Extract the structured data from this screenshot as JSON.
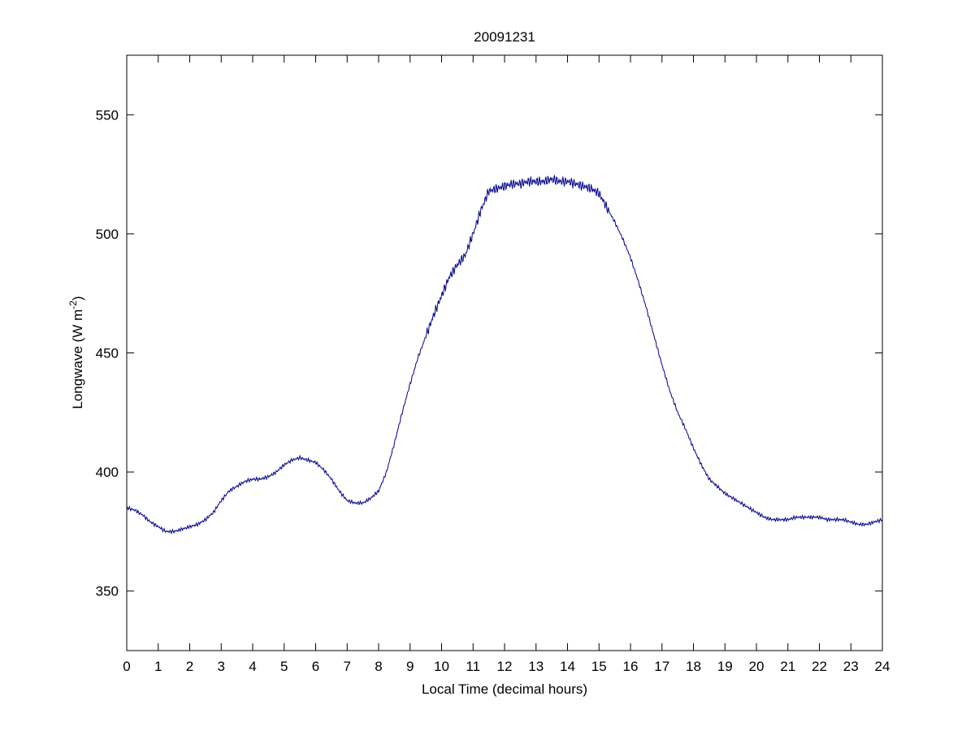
{
  "chart_data": {
    "type": "line",
    "title": "20091231",
    "xlabel": "Local Time (decimal hours)",
    "ylabel": "Longwave (W m-2)",
    "ylabel_parts": {
      "main": "Longwave (W m",
      "sup": "-2",
      "close": ")"
    },
    "xlim": [
      0,
      24
    ],
    "ylim": [
      325,
      575
    ],
    "x_ticks": [
      0,
      1,
      2,
      3,
      4,
      5,
      6,
      7,
      8,
      9,
      10,
      11,
      12,
      13,
      14,
      15,
      16,
      17,
      18,
      19,
      20,
      21,
      22,
      23,
      24
    ],
    "y_ticks": [
      350,
      400,
      450,
      500,
      550
    ],
    "grid": false,
    "line_color": "#00008b",
    "series": [
      {
        "x": [
          0,
          0.25,
          0.5,
          0.75,
          1,
          1.25,
          1.5,
          1.75,
          2,
          2.25,
          2.5,
          2.75,
          3,
          3.25,
          3.5,
          3.75,
          4,
          4.25,
          4.5,
          4.75,
          5,
          5.25,
          5.5,
          5.75,
          6,
          6.25,
          6.5,
          6.75,
          7,
          7.25,
          7.5,
          7.75,
          8,
          8.25,
          8.5,
          8.75,
          9,
          9.25,
          9.5,
          9.75,
          10,
          10.25,
          10.5,
          10.75,
          11,
          11.25,
          11.5,
          11.75,
          12,
          12.25,
          12.5,
          12.75,
          13,
          13.25,
          13.5,
          13.75,
          14,
          14.25,
          14.5,
          14.75,
          15,
          15.25,
          15.5,
          15.75,
          16,
          16.25,
          16.5,
          16.75,
          17,
          17.25,
          17.5,
          17.75,
          18,
          18.25,
          18.5,
          18.75,
          19,
          19.25,
          19.5,
          19.75,
          20,
          20.25,
          20.5,
          20.75,
          21,
          21.25,
          21.5,
          21.75,
          22,
          22.25,
          22.5,
          22.75,
          23,
          23.25,
          23.5,
          23.75,
          24
        ],
        "y": [
          385,
          384,
          382,
          379,
          377,
          375,
          375,
          376,
          377,
          378,
          380,
          383,
          388,
          392,
          394,
          396,
          397,
          397,
          398,
          400,
          403,
          405,
          406,
          405,
          404,
          401,
          397,
          392,
          388,
          387,
          387,
          389,
          392,
          400,
          412,
          425,
          437,
          448,
          457,
          466,
          474,
          482,
          487,
          491,
          500,
          510,
          518,
          519,
          520,
          521,
          521,
          522,
          522,
          522,
          523,
          522,
          522,
          521,
          520,
          519,
          517,
          511,
          505,
          498,
          490,
          480,
          469,
          457,
          445,
          434,
          425,
          418,
          410,
          403,
          397,
          394,
          391,
          389,
          387,
          385,
          383,
          381,
          380,
          380,
          380,
          381,
          381,
          381,
          381,
          380,
          380,
          380,
          379,
          378,
          378,
          379,
          380
        ]
      }
    ]
  }
}
